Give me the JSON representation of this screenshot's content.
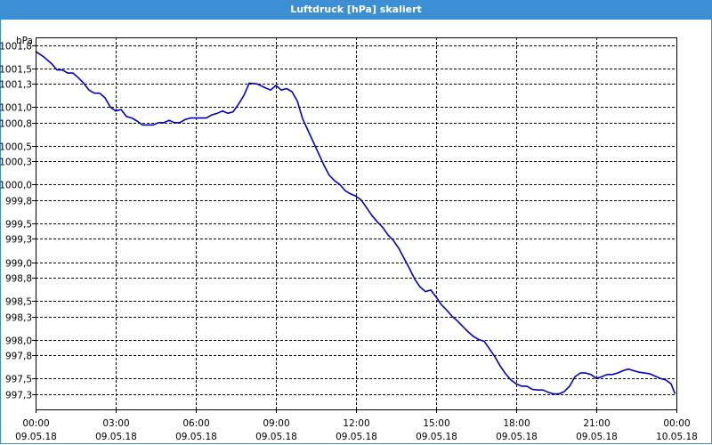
{
  "window": {
    "title": "Luftdruck [hPa] skaliert"
  },
  "colors": {
    "title_bar": "#3c8fd3",
    "line": "#0000c8",
    "grid": "#000000"
  },
  "chart_data": {
    "type": "line",
    "title": "Luftdruck [hPa] skaliert",
    "ylabel": "hPa",
    "xlabel": "",
    "grid": true,
    "line_style": "step",
    "ylim": [
      997.1,
      1001.9
    ],
    "yticks": [
      {
        "value": 1001.8,
        "label": "1001,8"
      },
      {
        "value": 1001.5,
        "label": "1001,5"
      },
      {
        "value": 1001.3,
        "label": "1001,3"
      },
      {
        "value": 1001.0,
        "label": "1001,0"
      },
      {
        "value": 1000.8,
        "label": "1000,8"
      },
      {
        "value": 1000.5,
        "label": "1000,5"
      },
      {
        "value": 1000.3,
        "label": "1000,3"
      },
      {
        "value": 1000.0,
        "label": "1000,0"
      },
      {
        "value": 999.8,
        "label": "999,8"
      },
      {
        "value": 999.5,
        "label": "999,5"
      },
      {
        "value": 999.3,
        "label": "999,3"
      },
      {
        "value": 999.0,
        "label": "999,0"
      },
      {
        "value": 998.8,
        "label": "998,8"
      },
      {
        "value": 998.5,
        "label": "998,5"
      },
      {
        "value": 998.3,
        "label": "998,3"
      },
      {
        "value": 998.0,
        "label": "998,0"
      },
      {
        "value": 997.8,
        "label": "997,8"
      },
      {
        "value": 997.5,
        "label": "997,5"
      },
      {
        "value": 997.3,
        "label": "997,3"
      }
    ],
    "xlim": [
      0,
      24
    ],
    "xticks": [
      {
        "value": 0,
        "time": "00:00",
        "date": "09.05.18"
      },
      {
        "value": 3,
        "time": "03:00",
        "date": "09.05.18"
      },
      {
        "value": 6,
        "time": "06:00",
        "date": "09.05.18"
      },
      {
        "value": 9,
        "time": "09:00",
        "date": "09.05.18"
      },
      {
        "value": 12,
        "time": "12:00",
        "date": "09.05.18"
      },
      {
        "value": 15,
        "time": "15:00",
        "date": "09.05.18"
      },
      {
        "value": 18,
        "time": "18:00",
        "date": "09.05.18"
      },
      {
        "value": 21,
        "time": "21:00",
        "date": "09.05.18"
      },
      {
        "value": 24,
        "time": "00:00",
        "date": "10.05.18"
      }
    ],
    "series": [
      {
        "color": "#0000c8",
        "x": [
          0,
          0.3,
          0.6,
          0.8,
          1.0,
          1.2,
          1.4,
          1.6,
          1.8,
          2.0,
          2.2,
          2.4,
          2.6,
          2.8,
          3.0,
          3.2,
          3.4,
          3.6,
          3.8,
          4.0,
          4.2,
          4.4,
          4.6,
          4.8,
          5.0,
          5.2,
          5.4,
          5.6,
          5.8,
          6.0,
          6.2,
          6.4,
          6.6,
          6.8,
          7.0,
          7.2,
          7.4,
          7.6,
          7.8,
          8.0,
          8.3,
          8.6,
          8.8,
          9.0,
          9.2,
          9.4,
          9.6,
          9.8,
          10.0,
          10.2,
          10.4,
          10.6,
          10.8,
          11.0,
          11.2,
          11.4,
          11.6,
          11.8,
          12.0,
          12.2,
          12.4,
          12.6,
          12.8,
          13.0,
          13.2,
          13.4,
          13.6,
          13.8,
          14.0,
          14.2,
          14.4,
          14.6,
          14.8,
          15.0,
          15.2,
          15.4,
          15.6,
          15.8,
          16.0,
          16.2,
          16.4,
          16.6,
          16.8,
          17.0,
          17.2,
          17.4,
          17.6,
          17.8,
          18.0,
          18.2,
          18.4,
          18.6,
          18.8,
          19.0,
          19.2,
          19.4,
          19.6,
          19.8,
          20.0,
          20.2,
          20.4,
          20.6,
          20.8,
          21.0,
          21.2,
          21.4,
          21.6,
          21.8,
          22.0,
          22.2,
          22.4,
          22.6,
          22.8,
          23.0,
          23.2,
          23.4,
          23.6,
          23.8,
          23.95
        ],
        "y": [
          1001.72,
          1001.65,
          1001.56,
          1001.48,
          1001.48,
          1001.44,
          1001.44,
          1001.38,
          1001.31,
          1001.22,
          1001.18,
          1001.18,
          1001.12,
          1001.0,
          1000.95,
          1000.97,
          1000.88,
          1000.86,
          1000.82,
          1000.77,
          1000.77,
          1000.77,
          1000.8,
          1000.8,
          1000.83,
          1000.8,
          1000.8,
          1000.84,
          1000.86,
          1000.86,
          1000.86,
          1000.86,
          1000.9,
          1000.92,
          1000.95,
          1000.92,
          1000.94,
          1001.04,
          1001.15,
          1001.31,
          1001.3,
          1001.25,
          1001.22,
          1001.28,
          1001.22,
          1001.24,
          1001.2,
          1001.08,
          1000.85,
          1000.7,
          1000.55,
          1000.4,
          1000.25,
          1000.12,
          1000.05,
          1000.0,
          999.92,
          999.88,
          999.85,
          999.8,
          999.7,
          999.6,
          999.52,
          999.45,
          999.35,
          999.28,
          999.18,
          999.05,
          998.92,
          998.78,
          998.68,
          998.62,
          998.64,
          998.55,
          998.45,
          998.38,
          998.3,
          998.24,
          998.17,
          998.1,
          998.04,
          998.0,
          997.98,
          997.88,
          997.78,
          997.66,
          997.56,
          997.48,
          997.43,
          997.4,
          997.4,
          997.36,
          997.35,
          997.35,
          997.32,
          997.3,
          997.3,
          997.33,
          997.4,
          997.52,
          997.57,
          997.57,
          997.55,
          997.5,
          997.52,
          997.55,
          997.55,
          997.57,
          997.6,
          997.62,
          997.6,
          997.58,
          997.57,
          997.56,
          997.53,
          997.5,
          997.48,
          997.43,
          997.3
        ]
      }
    ]
  }
}
